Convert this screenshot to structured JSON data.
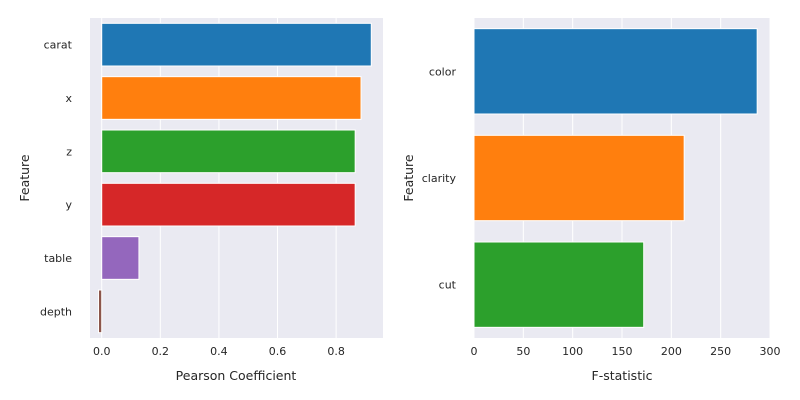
{
  "chart_data": [
    {
      "type": "bar",
      "orientation": "horizontal",
      "categories": [
        "carat",
        "x",
        "z",
        "y",
        "table",
        "depth"
      ],
      "values": [
        0.92,
        0.885,
        0.865,
        0.865,
        0.127,
        -0.011
      ],
      "colors": [
        "#1f77b4",
        "#ff7f0e",
        "#2ca02c",
        "#d62728",
        "#9467bd",
        "#8c564b"
      ],
      "title": "",
      "xlabel": "Pearson Coefficient",
      "ylabel": "Feature",
      "xlim": [
        -0.04,
        0.96
      ],
      "xticks": [
        "0.0",
        "0.2",
        "0.4",
        "0.6",
        "0.8"
      ],
      "grid": true
    },
    {
      "type": "bar",
      "orientation": "horizontal",
      "categories": [
        "color",
        "clarity",
        "cut"
      ],
      "values": [
        287,
        213,
        172
      ],
      "colors": [
        "#1f77b4",
        "#ff7f0e",
        "#2ca02c"
      ],
      "title": "",
      "xlabel": "F-statistic",
      "ylabel": "Feature",
      "xlim": [
        0,
        300
      ],
      "xticks": [
        "0",
        "50",
        "100",
        "150",
        "200",
        "250",
        "300"
      ],
      "grid": true
    }
  ]
}
